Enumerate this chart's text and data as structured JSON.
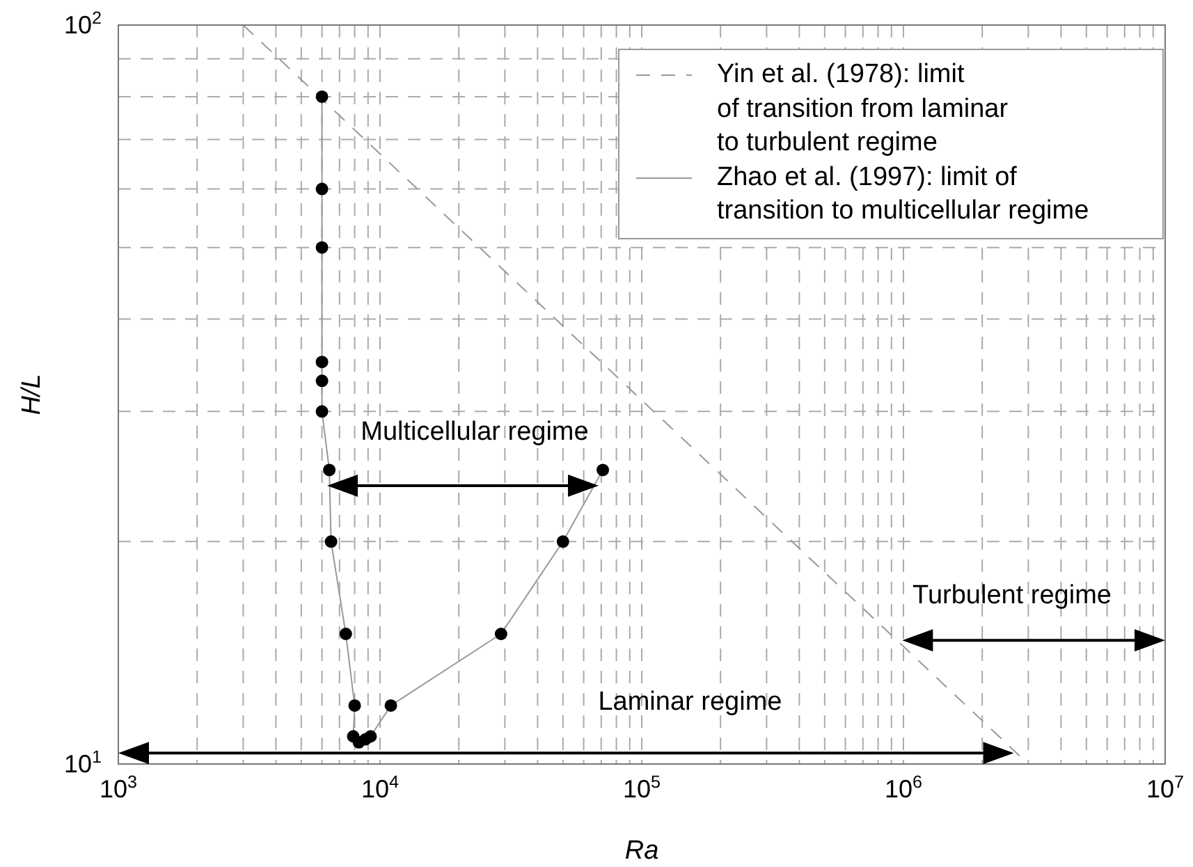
{
  "chart_data": {
    "type": "line",
    "xlabel": "Ra",
    "ylabel": "H/L",
    "log": "xy",
    "grid": true,
    "legend": "top right",
    "xlim": [
      1000,
      10000000
    ],
    "ylim": [
      10,
      100
    ],
    "xticks": [
      {
        "value": 1000,
        "label": "10$^{3}$"
      },
      {
        "value": 2000,
        "label": null
      },
      {
        "value": 3000,
        "label": null
      },
      {
        "value": 4000,
        "label": null
      },
      {
        "value": 5000,
        "label": null
      },
      {
        "value": 6000,
        "label": null
      },
      {
        "value": 7000,
        "label": null
      },
      {
        "value": 8000,
        "label": null
      },
      {
        "value": 9000,
        "label": null
      },
      {
        "value": 10000,
        "label": "10$^{4}$"
      },
      {
        "value": 20000,
        "label": null
      },
      {
        "value": 30000,
        "label": null
      },
      {
        "value": 40000,
        "label": null
      },
      {
        "value": 50000,
        "label": null
      },
      {
        "value": 60000,
        "label": null
      },
      {
        "value": 70000,
        "label": null
      },
      {
        "value": 80000,
        "label": null
      },
      {
        "value": 90000,
        "label": null
      },
      {
        "value": 100000,
        "label": "10$^{5}$"
      },
      {
        "value": 200000,
        "label": null
      },
      {
        "value": 300000,
        "label": null
      },
      {
        "value": 400000,
        "label": null
      },
      {
        "value": 500000,
        "label": null
      },
      {
        "value": 600000,
        "label": null
      },
      {
        "value": 700000,
        "label": null
      },
      {
        "value": 800000,
        "label": null
      },
      {
        "value": 900000,
        "label": null
      },
      {
        "value": 1000000,
        "label": "10$^{6}$"
      },
      {
        "value": 2000000,
        "label": null
      },
      {
        "value": 3000000,
        "label": null
      },
      {
        "value": 4000000,
        "label": null
      },
      {
        "value": 5000000,
        "label": null
      },
      {
        "value": 6000000,
        "label": null
      },
      {
        "value": 7000000,
        "label": null
      },
      {
        "value": 8000000,
        "label": null
      },
      {
        "value": 9000000,
        "label": null
      },
      {
        "value": 10000000,
        "label": "10$^{7}$"
      }
    ],
    "yticks": [
      {
        "value": 10,
        "label": "10$^{1}$"
      },
      {
        "value": 20,
        "label": null
      },
      {
        "value": 30,
        "label": null
      },
      {
        "value": 40,
        "label": null
      },
      {
        "value": 50,
        "label": null
      },
      {
        "value": 60,
        "label": null
      },
      {
        "value": 70,
        "label": null
      },
      {
        "value": 80,
        "label": null
      },
      {
        "value": 90,
        "label": null
      },
      {
        "value": 100,
        "label": "10$^{2}$"
      }
    ],
    "series": [
      {
        "name": "Yin et al. (1978): limit\nof transition from laminar\nto turbulent regime",
        "type": "line",
        "line_style": "dashed",
        "marker": "none",
        "color": "#999999",
        "x": [
          3000,
          3000000
        ],
        "values": [
          100,
          10
        ]
      },
      {
        "name": "Zhao et al. (1997): limit of\ntransition to multicellular regime",
        "type": "line",
        "line_style": "solid",
        "marker": "circle",
        "color": "#999999",
        "colors": [
          "#000000",
          "#000000",
          "#000000",
          "#000000",
          "#000000",
          "#000000",
          "#000000",
          "#000000",
          "#000000",
          "#000000",
          "#000000",
          "#000000",
          "#000000",
          "#000000",
          "#000000",
          "#000000",
          "#000000",
          "#000000"
        ],
        "x": [
          6000,
          6000,
          6000,
          6000,
          6000,
          6000,
          6400,
          6500,
          7400,
          8000,
          7900,
          8300,
          8800,
          9200,
          11000,
          29000,
          50000,
          71000
        ],
        "values": [
          80,
          60,
          50,
          35,
          33,
          30,
          25,
          20,
          15,
          12,
          10.9,
          10.7,
          10.8,
          10.9,
          12,
          15,
          20,
          25
        ]
      }
    ],
    "annotations": [
      "Multicellular regime",
      "Laminar regime",
      "Turbulent regime"
    ]
  }
}
